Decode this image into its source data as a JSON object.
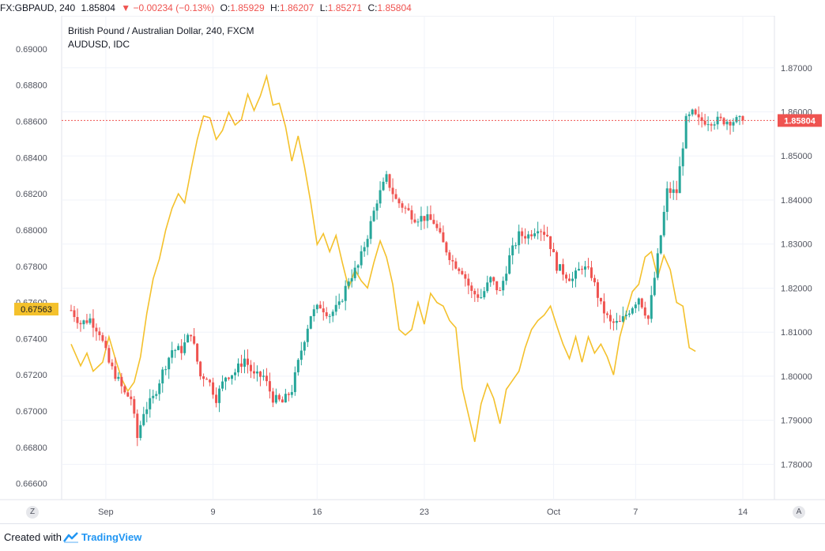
{
  "header": {
    "symbol": "FX:GBPAUD, 240",
    "last": "1.85804",
    "arrow": "▼",
    "change": "−0.00234 (−0.13%)",
    "o_label": "O:",
    "o_val": "1.85929",
    "h_label": "H:",
    "h_val": "1.86207",
    "l_label": "L:",
    "l_val": "1.85271",
    "c_label": "C:",
    "c_val": "1.85804"
  },
  "legend": {
    "line1": "British Pound / Australian Dollar, 240, FXCM",
    "line2": "AUDUSD, IDC"
  },
  "price_badge_right": "1.85804",
  "price_badge_left": "0.67563",
  "corner_left": "Z",
  "corner_right": "A",
  "footer": {
    "created_with": "Created with",
    "brand": "TradingView"
  },
  "colors": {
    "up": "#26a69a",
    "down": "#ef5350",
    "overlay": "#f4c12c",
    "badge_left": "#f4c12c",
    "badge_right": "#ef5350"
  },
  "chart_data": {
    "type": "candlestick",
    "series": [
      {
        "name": "GBPAUD (British Pound / Australian Dollar, 240, FXCM)",
        "axis": "right",
        "ylim": [
          1.772,
          1.8818
        ],
        "ticks": [
          "1.87000",
          "1.86000",
          "1.85000",
          "1.84000",
          "1.83000",
          "1.82000",
          "1.81000",
          "1.80000",
          "1.79000",
          "1.78000"
        ],
        "anchors_close": [
          [
            0,
            1.815
          ],
          [
            3,
            1.812
          ],
          [
            6,
            1.813
          ],
          [
            9,
            1.81
          ],
          [
            12,
            1.803
          ],
          [
            15,
            1.799
          ],
          [
            17,
            1.796
          ],
          [
            19,
            1.795
          ],
          [
            21,
            1.786
          ],
          [
            23,
            1.792
          ],
          [
            26,
            1.795
          ],
          [
            29,
            1.801
          ],
          [
            32,
            1.806
          ],
          [
            35,
            1.806
          ],
          [
            38,
            1.81
          ],
          [
            41,
            1.8
          ],
          [
            43,
            1.8
          ],
          [
            46,
            1.795
          ],
          [
            49,
            1.8
          ],
          [
            52,
            1.801
          ],
          [
            55,
            1.804
          ],
          [
            58,
            1.8
          ],
          [
            61,
            1.8
          ],
          [
            64,
            1.795
          ],
          [
            67,
            1.794
          ],
          [
            70,
            1.797
          ],
          [
            73,
            1.806
          ],
          [
            76,
            1.814
          ],
          [
            79,
            1.816
          ],
          [
            82,
            1.814
          ],
          [
            85,
            1.816
          ],
          [
            88,
            1.822
          ],
          [
            91,
            1.825
          ],
          [
            94,
            1.832
          ],
          [
            97,
            1.84
          ],
          [
            100,
            1.845
          ],
          [
            103,
            1.84
          ],
          [
            106,
            1.838
          ],
          [
            109,
            1.836
          ],
          [
            112,
            1.836
          ],
          [
            115,
            1.835
          ],
          [
            118,
            1.83
          ],
          [
            121,
            1.826
          ],
          [
            124,
            1.824
          ],
          [
            127,
            1.819
          ],
          [
            130,
            1.818
          ],
          [
            133,
            1.822
          ],
          [
            136,
            1.819
          ],
          [
            139,
            1.827
          ],
          [
            142,
            1.832
          ],
          [
            145,
            1.832
          ],
          [
            148,
            1.834
          ],
          [
            151,
            1.832
          ],
          [
            154,
            1.825
          ],
          [
            157,
            1.823
          ],
          [
            159,
            1.822
          ],
          [
            162,
            1.825
          ],
          [
            165,
            1.823
          ],
          [
            168,
            1.816
          ],
          [
            171,
            1.812
          ],
          [
            174,
            1.812
          ],
          [
            177,
            1.815
          ],
          [
            180,
            1.818
          ],
          [
            183,
            1.813
          ],
          [
            186,
            1.827
          ],
          [
            189,
            1.842
          ],
          [
            192,
            1.8418
          ],
          [
            195,
            1.858
          ],
          [
            197,
            1.8596
          ],
          [
            199,
            1.858
          ]
        ],
        "last": 1.85804
      },
      {
        "name": "AUDUSD, IDC",
        "axis": "left",
        "ylim": [
          0.66511,
          0.69183
        ],
        "ticks": [
          "0.69000",
          "0.68800",
          "0.68600",
          "0.68400",
          "0.68200",
          "0.68000",
          "0.67800",
          "0.67600",
          "0.67400",
          "0.67200",
          "0.67000",
          "0.66800",
          "0.66600"
        ],
        "anchors": [
          [
            0,
            0.6737
          ],
          [
            3,
            0.6725
          ],
          [
            5,
            0.6732
          ],
          [
            7,
            0.6722
          ],
          [
            10,
            0.6727
          ],
          [
            12,
            0.6741
          ],
          [
            14,
            0.6729
          ],
          [
            16,
            0.6718
          ],
          [
            18,
            0.6711
          ],
          [
            20,
            0.6716
          ],
          [
            22,
            0.673
          ],
          [
            24,
            0.6754
          ],
          [
            26,
            0.6773
          ],
          [
            28,
            0.6784
          ],
          [
            30,
            0.68
          ],
          [
            32,
            0.6812
          ],
          [
            34,
            0.682
          ],
          [
            36,
            0.6815
          ],
          [
            38,
            0.6833
          ],
          [
            40,
            0.685
          ],
          [
            42,
            0.6863
          ],
          [
            44,
            0.6862
          ],
          [
            46,
            0.685
          ],
          [
            48,
            0.6855
          ],
          [
            50,
            0.6865
          ],
          [
            52,
            0.6858
          ],
          [
            54,
            0.6861
          ],
          [
            56,
            0.6875
          ],
          [
            58,
            0.6866
          ],
          [
            60,
            0.6874
          ],
          [
            62,
            0.6885
          ],
          [
            64,
            0.6869
          ],
          [
            66,
            0.687
          ],
          [
            68,
            0.6857
          ],
          [
            70,
            0.6838
          ],
          [
            72,
            0.6852
          ],
          [
            74,
            0.6835
          ],
          [
            76,
            0.6815
          ],
          [
            78,
            0.6792
          ],
          [
            80,
            0.6798
          ],
          [
            82,
            0.6788
          ],
          [
            84,
            0.6797
          ],
          [
            86,
            0.6782
          ],
          [
            88,
            0.6768
          ],
          [
            90,
            0.6778
          ],
          [
            92,
            0.6772
          ],
          [
            94,
            0.6768
          ],
          [
            96,
            0.6782
          ],
          [
            98,
            0.6794
          ],
          [
            100,
            0.6785
          ],
          [
            102,
            0.677
          ],
          [
            104,
            0.6745
          ],
          [
            106,
            0.6742
          ],
          [
            108,
            0.6745
          ],
          [
            110,
            0.676
          ],
          [
            112,
            0.6748
          ],
          [
            114,
            0.6765
          ],
          [
            116,
            0.676
          ],
          [
            118,
            0.6758
          ],
          [
            120,
            0.675
          ],
          [
            122,
            0.6746
          ],
          [
            124,
            0.6713
          ],
          [
            126,
            0.6698
          ],
          [
            128,
            0.6683
          ],
          [
            130,
            0.6704
          ],
          [
            132,
            0.6715
          ],
          [
            134,
            0.6707
          ],
          [
            136,
            0.6693
          ],
          [
            138,
            0.6712
          ],
          [
            140,
            0.6717
          ],
          [
            142,
            0.6722
          ],
          [
            144,
            0.6735
          ],
          [
            146,
            0.6745
          ],
          [
            148,
            0.675
          ],
          [
            150,
            0.6753
          ],
          [
            152,
            0.6758
          ],
          [
            154,
            0.6747
          ],
          [
            156,
            0.6737
          ],
          [
            158,
            0.6729
          ],
          [
            160,
            0.6741
          ],
          [
            162,
            0.6727
          ],
          [
            164,
            0.6741
          ],
          [
            166,
            0.6732
          ],
          [
            168,
            0.6737
          ],
          [
            170,
            0.673
          ],
          [
            172,
            0.672
          ],
          [
            174,
            0.6741
          ],
          [
            176,
            0.6754
          ],
          [
            178,
            0.6766
          ],
          [
            180,
            0.677
          ],
          [
            182,
            0.6785
          ],
          [
            184,
            0.6788
          ],
          [
            186,
            0.6774
          ],
          [
            188,
            0.6786
          ],
          [
            190,
            0.6778
          ],
          [
            192,
            0.676
          ],
          [
            194,
            0.6758
          ],
          [
            196,
            0.6735
          ],
          [
            198,
            0.6733
          ]
        ],
        "last": 0.67563
      }
    ],
    "x_ticks": [
      "Sep",
      "9",
      "16",
      "23",
      "Oct",
      "7",
      "14"
    ],
    "x_tick_bars": [
      11,
      45,
      78,
      112,
      153,
      179,
      213
    ],
    "bar_count": 214,
    "grid": true,
    "legend": "top-left"
  }
}
